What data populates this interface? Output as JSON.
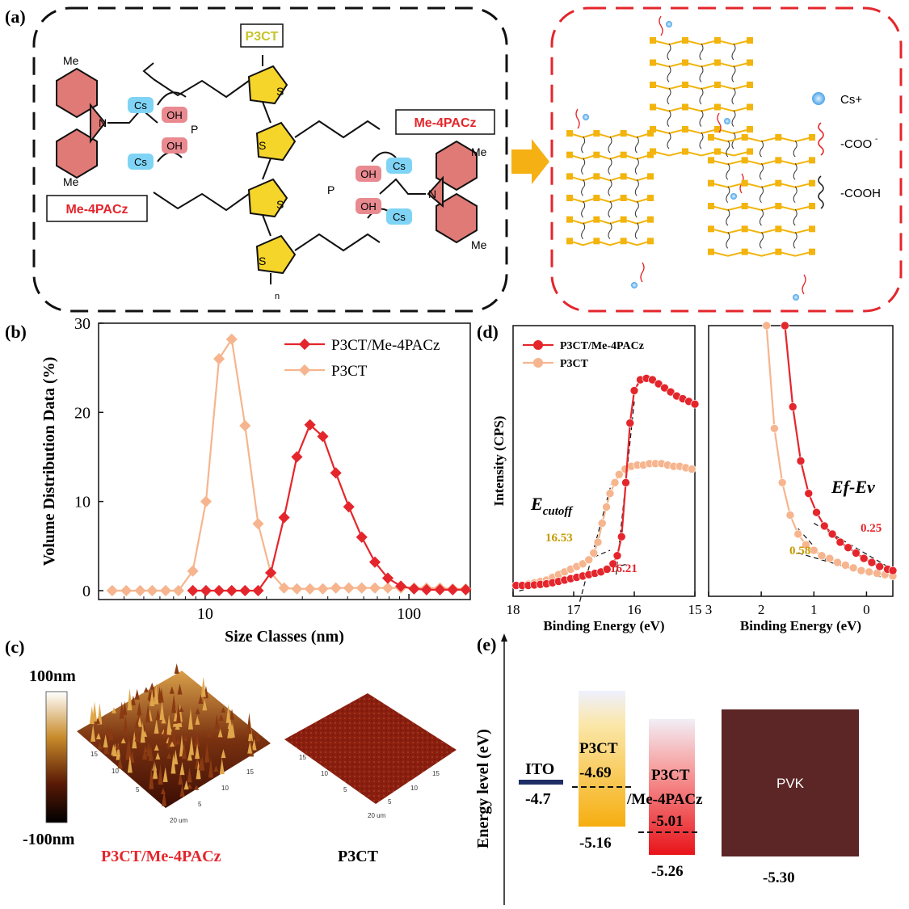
{
  "panel_labels": {
    "a": "(a)",
    "b": "(b)",
    "c": "(c)",
    "d": "(d)",
    "e": "(e)"
  },
  "colors": {
    "red": "#e4262c",
    "salmon": "#f6b58e",
    "gold": "#c79a00",
    "afm_dark": "#5a1a0a",
    "pvk": "#5c2626"
  },
  "panel_a": {
    "p3ct_label": "P3CT",
    "me4pacz_label": "Me-4PACz",
    "me": "Me",
    "n": "N",
    "s": "S",
    "oh": "OH",
    "o": "O",
    "p": "P",
    "cs": "Cs",
    "repeat_n": "n",
    "legend": {
      "cs_ion": "Cs+",
      "coo": "-COO",
      "coo_sup": "-",
      "cooh": "-COOH"
    }
  },
  "chart_data": [
    {
      "id": "b",
      "type": "line",
      "xscale": "log",
      "xlabel": "Size Classes (nm)",
      "ylabel": "Volume Distribution Data (%)",
      "xlim": [
        3,
        200
      ],
      "ylim": [
        -1,
        30
      ],
      "yticks": [
        0,
        10,
        20,
        30
      ],
      "xticks": [
        10,
        100
      ],
      "series": [
        {
          "name": "P3CT/Me-4PACz",
          "color": "#e4262c",
          "x": [
            8.7,
            10.1,
            11.7,
            13.5,
            15.7,
            18.2,
            21.0,
            24.4,
            28.2,
            32.7,
            37.8,
            43.8,
            50.7,
            58.7,
            68.1,
            78.8,
            91.3,
            106,
            122,
            142,
            164,
            190
          ],
          "y": [
            0,
            0,
            0,
            0,
            0,
            0,
            2.0,
            8.2,
            15.0,
            18.6,
            17.3,
            13.2,
            9.4,
            6.0,
            3.2,
            1.4,
            0.5,
            0.2,
            0.1,
            0.1,
            0.1,
            0.1
          ]
        },
        {
          "name": "P3CT",
          "color": "#f6b58e",
          "x": [
            3.5,
            4.1,
            4.8,
            5.5,
            6.4,
            7.4,
            8.7,
            10.1,
            11.7,
            13.5,
            15.7,
            18.2,
            21.0,
            24.4,
            28.2,
            32.7,
            37.8,
            43.8,
            50.7,
            58.7,
            68.1,
            78.8,
            91.3,
            106,
            122,
            142,
            164,
            190
          ],
          "y": [
            0,
            0,
            0,
            0,
            0,
            0,
            2.2,
            10.0,
            26.0,
            28.2,
            18.5,
            7.5,
            2.0,
            0.3,
            0.2,
            0.2,
            0.2,
            0.3,
            0.3,
            0.3,
            0.3,
            0.3,
            0.3,
            0.3,
            0.3,
            0.3,
            0.2,
            0.2
          ]
        }
      ]
    },
    {
      "id": "d_left",
      "type": "line",
      "xlabel": "Binding Energy (eV)",
      "ylabel": "Intensity (CPS)",
      "xlim": [
        18,
        15
      ],
      "ylim": [
        0,
        100
      ],
      "xticks": [
        18,
        17,
        16,
        15
      ],
      "series": [
        {
          "name": "P3CT/Me-4PACz",
          "color": "#e4262c",
          "x": [
            17.95,
            17.85,
            17.75,
            17.65,
            17.55,
            17.45,
            17.35,
            17.25,
            17.15,
            17.05,
            16.95,
            16.85,
            16.75,
            16.65,
            16.55,
            16.45,
            16.35,
            16.28,
            16.21,
            16.14,
            16.07,
            16.0,
            15.9,
            15.8,
            15.7,
            15.6,
            15.5,
            15.4,
            15.3,
            15.2,
            15.1,
            15.0
          ],
          "y": [
            4,
            4,
            4,
            4.2,
            4.4,
            4.6,
            5,
            5.5,
            6,
            6.5,
            7,
            7.5,
            8,
            8.5,
            9,
            10,
            12,
            15,
            22,
            42,
            64,
            76,
            80,
            80.5,
            80,
            78.5,
            77,
            75.5,
            74,
            73,
            72,
            71
          ]
        },
        {
          "name": "P3CT",
          "color": "#f6b58e",
          "x": [
            17.95,
            17.85,
            17.75,
            17.65,
            17.55,
            17.45,
            17.35,
            17.25,
            17.15,
            17.05,
            16.95,
            16.85,
            16.75,
            16.67,
            16.6,
            16.53,
            16.46,
            16.4,
            16.32,
            16.25,
            16.15,
            16.05,
            15.95,
            15.85,
            15.75,
            15.65,
            15.55,
            15.45,
            15.35,
            15.25,
            15.15,
            15.05
          ],
          "y": [
            4,
            4.2,
            4.5,
            5,
            5.5,
            6,
            7,
            8,
            9,
            10,
            11,
            12,
            13.5,
            16,
            20,
            27,
            33,
            38,
            42,
            45,
            47,
            48,
            48.5,
            48.5,
            49,
            49,
            49,
            48.5,
            48,
            48,
            47.5,
            47
          ]
        }
      ],
      "annotations": {
        "cutoff_main": "E",
        "cutoff_sub": "cutoff",
        "red_value": "16.21",
        "salmon_value": "16.53"
      }
    },
    {
      "id": "d_right",
      "type": "line",
      "xlabel": "Binding Energy (eV)",
      "xlim": [
        3,
        -0.5
      ],
      "ylim": [
        0,
        100
      ],
      "xticks": [
        3,
        2,
        1,
        0
      ],
      "series": [
        {
          "name": "P3CT/Me-4PACz",
          "color": "#e4262c",
          "x": [
            1.55,
            1.4,
            1.25,
            1.1,
            0.95,
            0.8,
            0.65,
            0.5,
            0.35,
            0.2,
            0.05,
            -0.1,
            -0.25,
            -0.4,
            -0.5
          ],
          "y": [
            100,
            70,
            50,
            38,
            31,
            26,
            23,
            20,
            18,
            16,
            14,
            12.5,
            11,
            10,
            9.5
          ]
        },
        {
          "name": "P3CT",
          "color": "#f6b58e",
          "x": [
            1.9,
            1.75,
            1.6,
            1.45,
            1.3,
            1.15,
            1.0,
            0.85,
            0.7,
            0.55,
            0.4,
            0.25,
            0.1,
            -0.05,
            -0.2,
            -0.35,
            -0.5
          ],
          "y": [
            100,
            62,
            42,
            30,
            23,
            19,
            17,
            15,
            14,
            12.5,
            11.5,
            10.5,
            9.5,
            9,
            8.5,
            8,
            7.5
          ]
        }
      ],
      "annotations": {
        "efev": "Ef-Ev",
        "red_value": "0.25",
        "salmon_value": "0.58"
      }
    },
    {
      "id": "e",
      "type": "bar",
      "ylabel": "Energy level (eV)",
      "items": [
        {
          "name": "ITO",
          "level": "-4.7"
        },
        {
          "name": "P3CT",
          "top": "-4.69",
          "bottom": "-5.16"
        },
        {
          "name": "P3CT",
          "name2": "/Me-4PACz",
          "top": "-5.01",
          "bottom": "-5.26"
        },
        {
          "name": "PVK",
          "bottom": "-5.30"
        }
      ]
    }
  ],
  "panel_c": {
    "scale_max": "100nm",
    "scale_min": "-100nm",
    "label_left": "P3CT/Me-4PACz",
    "label_right": "P3CT",
    "axis_ticks": [
      "15",
      "10",
      "5",
      "20 um"
    ]
  }
}
